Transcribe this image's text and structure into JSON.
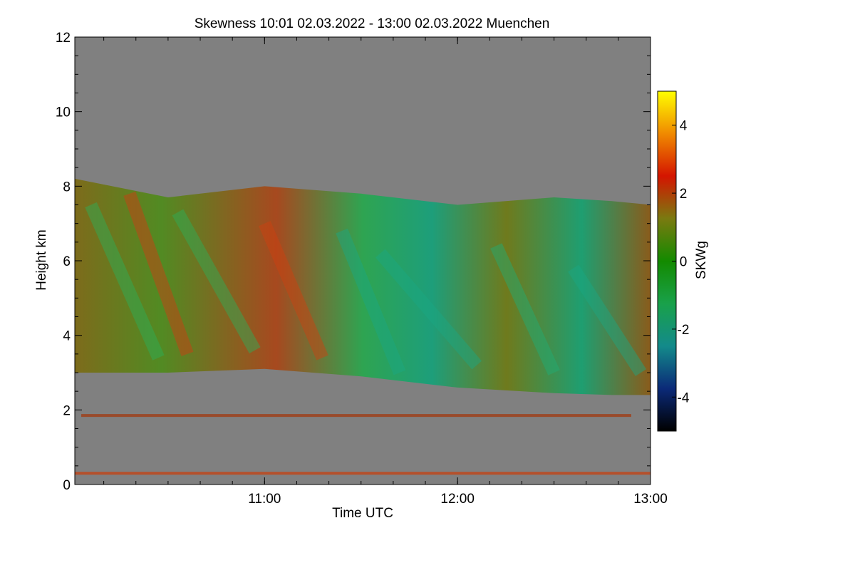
{
  "chart_data": {
    "type": "heatmap",
    "title": "Skewness   10:01 02.03.2022 - 13:00 02.03.2022 Muenchen",
    "xlabel": "Time UTC",
    "ylabel": "Height km",
    "xlim": [
      10.0167,
      13.0
    ],
    "ylim": [
      0,
      12
    ],
    "x_ticks": [
      {
        "value": 11.0,
        "label": "11:00"
      },
      {
        "value": 12.0,
        "label": "12:00"
      },
      {
        "value": 13.0,
        "label": "13:00"
      }
    ],
    "y_ticks": [
      {
        "value": 0,
        "label": "0"
      },
      {
        "value": 2,
        "label": "2"
      },
      {
        "value": 4,
        "label": "4"
      },
      {
        "value": 6,
        "label": "6"
      },
      {
        "value": 8,
        "label": "8"
      },
      {
        "value": 10,
        "label": "10"
      },
      {
        "value": 12,
        "label": "12"
      }
    ],
    "colorbar": {
      "label": "SKWg",
      "range": [
        -5,
        5
      ],
      "ticks": [
        {
          "value": 4,
          "label": "4"
        },
        {
          "value": 2,
          "label": "2"
        },
        {
          "value": 0,
          "label": "0"
        },
        {
          "value": -2,
          "label": "-2"
        },
        {
          "value": -4,
          "label": "-4"
        }
      ],
      "colors": [
        "#000000",
        "#0b2a78",
        "#138a8a",
        "#19a14a",
        "#138a00",
        "#7a7a10",
        "#d41500",
        "#f08a00",
        "#ffff00"
      ]
    },
    "background_color": "#808080",
    "layer": {
      "description_hidden": true,
      "base_km": [
        3.0,
        3.0,
        3.1,
        2.9,
        2.6,
        2.45,
        2.4,
        2.4
      ],
      "top_km": [
        8.2,
        7.7,
        8.0,
        7.8,
        7.5,
        7.7,
        7.6,
        7.5
      ],
      "base_times": [
        10.0167,
        10.5,
        11.0,
        11.5,
        12.0,
        12.5,
        12.8,
        13.0
      ]
    },
    "bands": [
      {
        "height_km": 0.3,
        "start": 10.0167,
        "end": 13.0,
        "color": "#b5502b"
      },
      {
        "height_km": 1.85,
        "start": 10.05,
        "end": 12.9,
        "color": "#9a4a2a"
      }
    ]
  }
}
